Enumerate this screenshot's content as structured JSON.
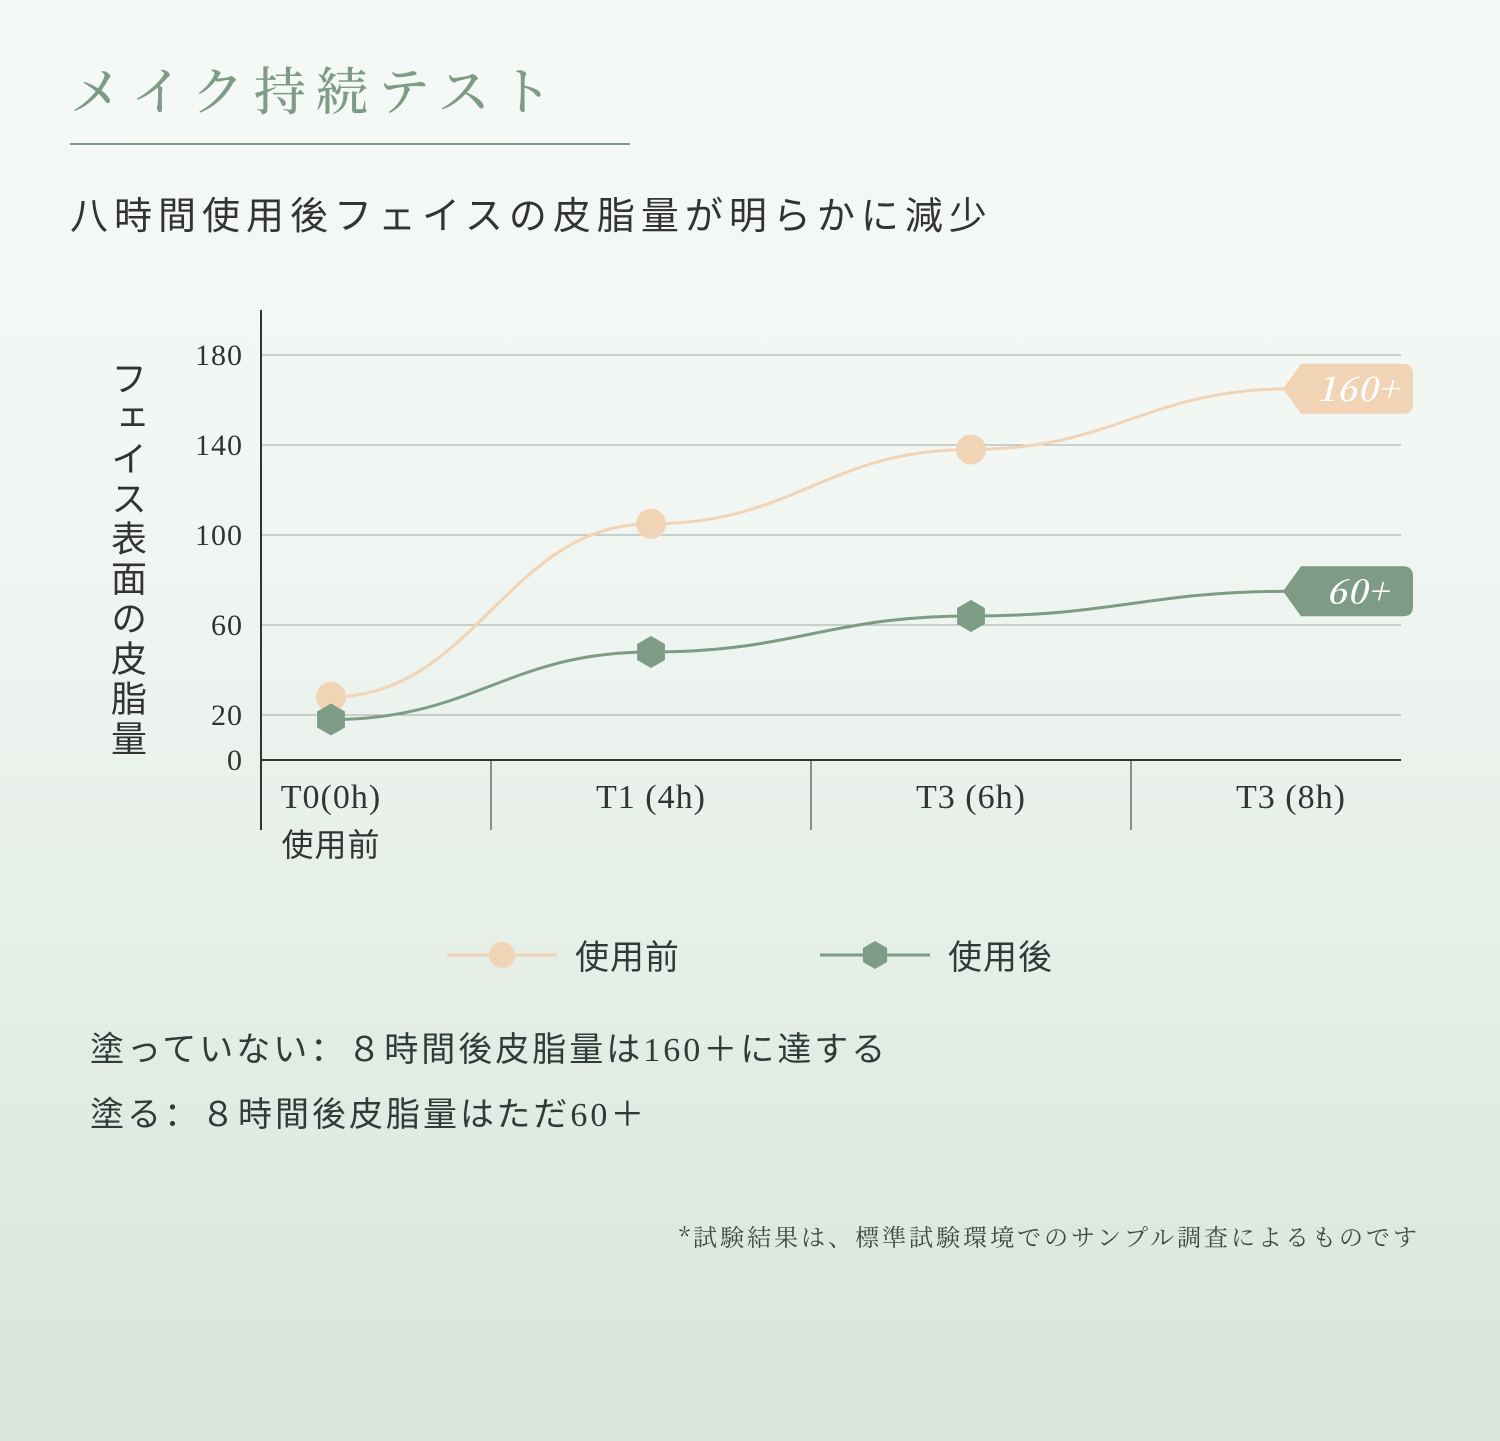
{
  "title": "メイク持続テスト",
  "subtitle": "八時間使用後フェイスの皮脂量が明らかに減少",
  "chart": {
    "type": "line",
    "y_axis_title": "フェイス表面の皮脂量",
    "ylim": [
      0,
      200
    ],
    "yticks": [
      0,
      20,
      60,
      100,
      140,
      180
    ],
    "gridlines_at": [
      20,
      60,
      100,
      140,
      180
    ],
    "x_labels": [
      "T0(0h)",
      "T1 (4h)",
      "T3 (6h)",
      "T3 (8h)"
    ],
    "x_sublabels": [
      "使用前",
      "",
      "",
      ""
    ],
    "series": [
      {
        "key": "before",
        "label": "使用前",
        "color": "#f1d4b5",
        "line_width": 3,
        "marker": "circle",
        "marker_size": 15,
        "values": [
          28,
          105,
          138,
          165
        ],
        "show_last_marker": false,
        "end_label": "160+",
        "end_label_bg": "#f1d4b5",
        "end_label_text": "#ffffff"
      },
      {
        "key": "after",
        "label": "使用後",
        "color": "#7d9b85",
        "line_width": 3,
        "marker": "hexagon",
        "marker_size": 16,
        "values": [
          18,
          48,
          64,
          75
        ],
        "show_last_marker": false,
        "end_label": "60+",
        "end_label_bg": "#7d9b85",
        "end_label_text": "#ffffff"
      }
    ],
    "axis_color": "#333333",
    "grid_color": "#5f6f67",
    "grid_width": 1,
    "label_fontsize": 30,
    "x_label_fontsize": 34
  },
  "legend": {
    "before": "使用前",
    "after": "使用後"
  },
  "notes": {
    "line1": "塗っていない：８時間後皮脂量は160＋に達する",
    "line2": "塗る：８時間後皮脂量はただ60＋"
  },
  "footnote": "*試験結果は、標準試験環境でのサンプル調査によるものです"
}
